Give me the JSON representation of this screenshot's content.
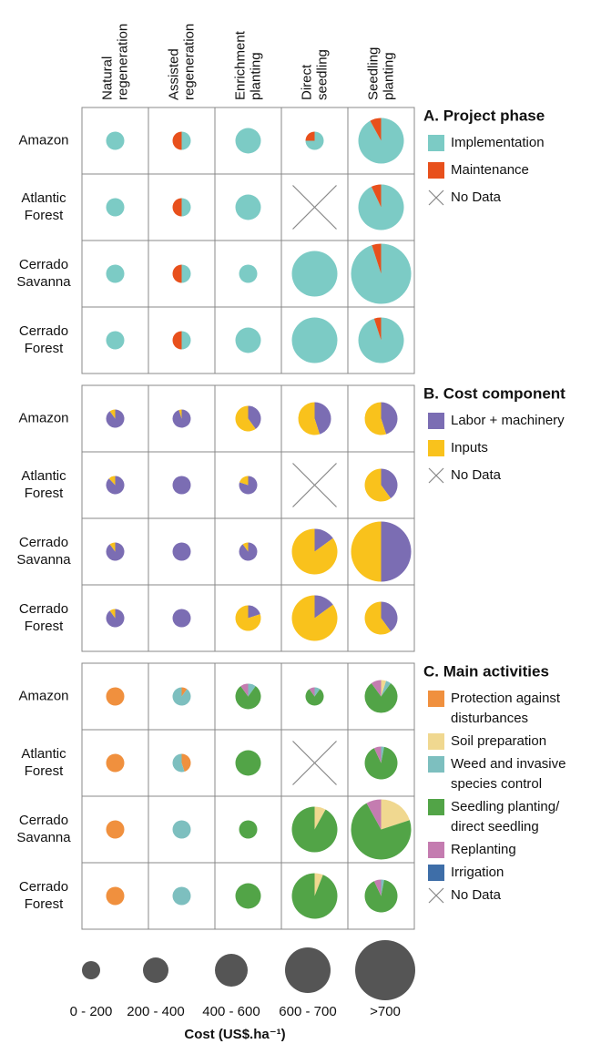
{
  "chart_data": {
    "type": "pie_matrix",
    "columns": [
      [
        "Natural",
        "regeneration"
      ],
      [
        "Assisted",
        "regeneration"
      ],
      [
        "Enrichment",
        "planting"
      ],
      [
        "Direct",
        "seedling"
      ],
      [
        "Seedling",
        "planting"
      ]
    ],
    "rows": [
      [
        "Amazon"
      ],
      [
        "Atlantic",
        "Forest"
      ],
      [
        "Cerrado",
        "Savanna"
      ],
      [
        "Cerrado",
        "Forest"
      ]
    ],
    "panels": [
      {
        "title": "A. Project phase",
        "legend": [
          {
            "name": [
              "Implementation"
            ],
            "color": "#7ccbc5"
          },
          {
            "name": [
              "Maintenance"
            ],
            "color": "#e8501c"
          }
        ],
        "no_data": "No Data",
        "cells": [
          [
            {
              "size": 0,
              "values": [
                100,
                0
              ]
            },
            {
              "size": 0,
              "values": [
                50,
                50
              ]
            },
            {
              "size": 1,
              "values": [
                100,
                0
              ]
            },
            {
              "size": 0,
              "values": [
                75,
                25
              ]
            },
            {
              "size": 3,
              "values": [
                92,
                8
              ]
            }
          ],
          [
            {
              "size": 0,
              "values": [
                100,
                0
              ]
            },
            {
              "size": 0,
              "values": [
                50,
                50
              ]
            },
            {
              "size": 1,
              "values": [
                100,
                0
              ]
            },
            null,
            {
              "size": 3,
              "values": [
                93,
                7
              ]
            }
          ],
          [
            {
              "size": 0,
              "values": [
                100,
                0
              ]
            },
            {
              "size": 0,
              "values": [
                50,
                50
              ]
            },
            {
              "size": 0,
              "values": [
                100,
                0
              ]
            },
            {
              "size": 3,
              "values": [
                100,
                0
              ]
            },
            {
              "size": 4,
              "values": [
                95,
                5
              ]
            }
          ],
          [
            {
              "size": 0,
              "values": [
                100,
                0
              ]
            },
            {
              "size": 0,
              "values": [
                50,
                50
              ]
            },
            {
              "size": 1,
              "values": [
                100,
                0
              ]
            },
            {
              "size": 3,
              "values": [
                100,
                0
              ]
            },
            {
              "size": 3,
              "values": [
                95,
                5
              ]
            }
          ]
        ]
      },
      {
        "title": "B. Cost component",
        "legend": [
          {
            "name": [
              "Labor + machinery"
            ],
            "color": "#7b6db3"
          },
          {
            "name": [
              "Inputs"
            ],
            "color": "#f9c21c"
          }
        ],
        "no_data": "No Data",
        "cells": [
          [
            {
              "size": 0,
              "values": [
                90,
                10
              ]
            },
            {
              "size": 0,
              "values": [
                95,
                5
              ]
            },
            {
              "size": 1,
              "values": [
                40,
                60
              ]
            },
            {
              "size": 2,
              "values": [
                45,
                55
              ]
            },
            {
              "size": 2,
              "values": [
                45,
                55
              ]
            }
          ],
          [
            {
              "size": 0,
              "values": [
                88,
                12
              ]
            },
            {
              "size": 0,
              "values": [
                100,
                0
              ]
            },
            {
              "size": 0,
              "values": [
                80,
                20
              ]
            },
            null,
            {
              "size": 2,
              "values": [
                40,
                60
              ]
            }
          ],
          [
            {
              "size": 0,
              "values": [
                90,
                10
              ]
            },
            {
              "size": 0,
              "values": [
                100,
                0
              ]
            },
            {
              "size": 0,
              "values": [
                90,
                10
              ]
            },
            {
              "size": 3,
              "values": [
                15,
                85
              ]
            },
            {
              "size": 4,
              "values": [
                50,
                50
              ]
            }
          ],
          [
            {
              "size": 0,
              "values": [
                90,
                10
              ]
            },
            {
              "size": 0,
              "values": [
                100,
                0
              ]
            },
            {
              "size": 1,
              "values": [
                20,
                80
              ]
            },
            {
              "size": 3,
              "values": [
                15,
                85
              ]
            },
            {
              "size": 2,
              "values": [
                40,
                60
              ]
            }
          ]
        ]
      },
      {
        "title": "C. Main activities",
        "legend": [
          {
            "name": [
              "Protection against",
              "disturbances"
            ],
            "color": "#f0903e"
          },
          {
            "name": [
              "Soil preparation"
            ],
            "color": "#f0d890"
          },
          {
            "name": [
              "Weed and invasive",
              "species control"
            ],
            "color": "#7dbfbf"
          },
          {
            "name": [
              "Seedling planting/",
              "direct seedling"
            ],
            "color": "#52a447"
          },
          {
            "name": [
              "Replanting"
            ],
            "color": "#c47cb0"
          },
          {
            "name": [
              "Irrigation"
            ],
            "color": "#3e6ea8"
          }
        ],
        "no_data": "No Data",
        "cells": [
          [
            {
              "size": 0,
              "values": [
                100,
                0,
                0,
                0,
                0,
                0
              ]
            },
            {
              "size": 0,
              "values": [
                10,
                0,
                90,
                0,
                0,
                0
              ]
            },
            {
              "size": 1,
              "values": [
                0,
                0,
                10,
                80,
                10,
                0
              ]
            },
            {
              "size": 0,
              "values": [
                0,
                0,
                10,
                80,
                10,
                0
              ]
            },
            {
              "size": 2,
              "values": [
                0,
                5,
                5,
                80,
                10,
                0
              ]
            }
          ],
          [
            {
              "size": 0,
              "values": [
                100,
                0,
                0,
                0,
                0,
                0
              ]
            },
            {
              "size": 0,
              "values": [
                45,
                0,
                55,
                0,
                0,
                0
              ]
            },
            {
              "size": 1,
              "values": [
                0,
                0,
                0,
                100,
                0,
                0
              ]
            },
            null,
            {
              "size": 2,
              "values": [
                0,
                0,
                3,
                90,
                7,
                0
              ]
            }
          ],
          [
            {
              "size": 0,
              "values": [
                100,
                0,
                0,
                0,
                0,
                0
              ]
            },
            {
              "size": 0,
              "values": [
                0,
                0,
                100,
                0,
                0,
                0
              ]
            },
            {
              "size": 0,
              "values": [
                0,
                0,
                0,
                100,
                0,
                0
              ]
            },
            {
              "size": 3,
              "values": [
                0,
                8,
                0,
                92,
                0,
                0
              ]
            },
            {
              "size": 4,
              "values": [
                0,
                20,
                0,
                72,
                8,
                0
              ]
            }
          ],
          [
            {
              "size": 0,
              "values": [
                100,
                0,
                0,
                0,
                0,
                0
              ]
            },
            {
              "size": 0,
              "values": [
                0,
                0,
                100,
                0,
                0,
                0
              ]
            },
            {
              "size": 1,
              "values": [
                0,
                0,
                0,
                100,
                0,
                0
              ]
            },
            {
              "size": 3,
              "values": [
                0,
                6,
                0,
                94,
                0,
                0
              ]
            },
            {
              "size": 2,
              "values": [
                0,
                0,
                3,
                90,
                7,
                0
              ]
            }
          ]
        ]
      }
    ],
    "size_legend": {
      "labels": [
        "0 - 200",
        "200 - 400",
        "400 - 600",
        "600 - 700",
        ">700"
      ],
      "color": "#555555",
      "axis_label": "Cost (US$.ha⁻¹)"
    }
  }
}
